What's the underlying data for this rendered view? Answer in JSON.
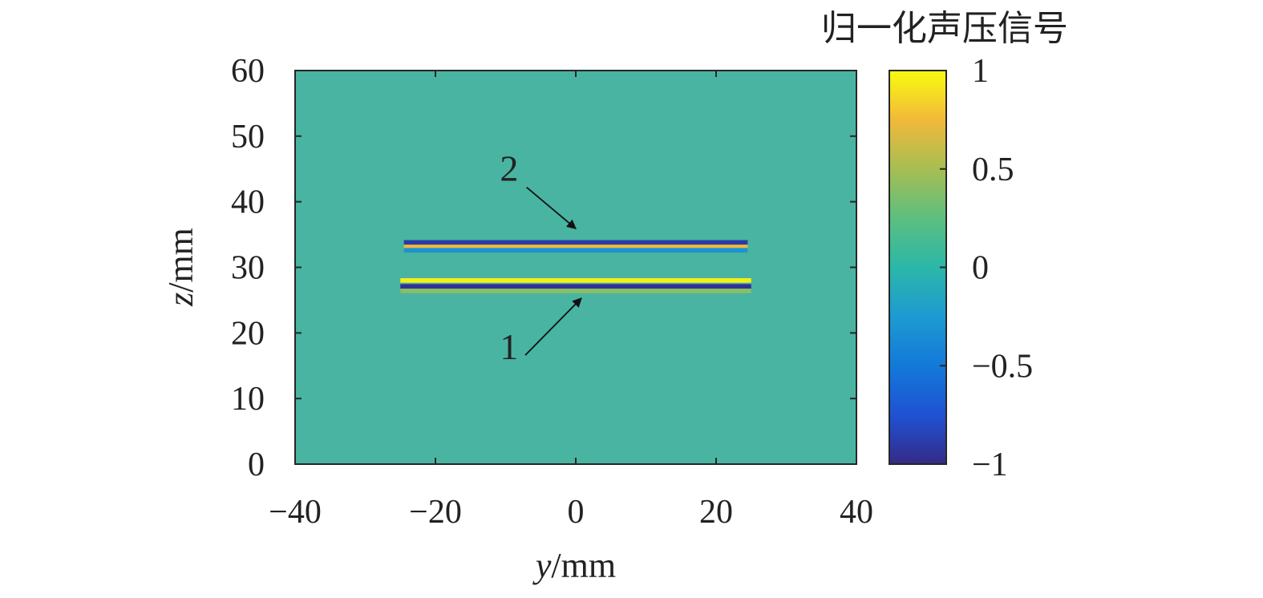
{
  "chart_data": {
    "type": "heatmap",
    "xlabel_var": "y",
    "xlabel_unit": "/mm",
    "ylabel_var": "z",
    "ylabel_unit": "/mm",
    "xlim": [
      -40,
      40
    ],
    "ylim": [
      0,
      60
    ],
    "x_ticks": [
      -40,
      -20,
      0,
      20,
      40
    ],
    "y_ticks": [
      0,
      10,
      20,
      30,
      40,
      50,
      60
    ],
    "x_tick_labels": [
      "−40",
      "−20",
      "0",
      "20",
      "40"
    ],
    "y_tick_labels": [
      "0",
      "10",
      "20",
      "30",
      "40",
      "50",
      "60"
    ],
    "background_value": 0,
    "colorbar": {
      "title": "归一化声压信号",
      "range": [
        -1,
        1
      ],
      "ticks": [
        1,
        0.5,
        0,
        -0.5,
        -1
      ],
      "tick_labels": [
        "1",
        "0.5",
        "0",
        "−0.5",
        "−1"
      ],
      "colormap": "parula"
    },
    "features": [
      {
        "id": "interface-2",
        "annotation": "2",
        "y_range": [
          -24.5,
          24.5
        ],
        "bands": [
          {
            "z": 33.8,
            "value": -0.9
          },
          {
            "z": 33.1,
            "value": 0.75
          },
          {
            "z": 32.6,
            "value": -0.3
          }
        ]
      },
      {
        "id": "interface-1",
        "annotation": "1",
        "y_range": [
          -25,
          25
        ],
        "bands": [
          {
            "z": 28.0,
            "value": 0.95
          },
          {
            "z": 27.1,
            "value": -0.95
          },
          {
            "z": 26.4,
            "value": 0.4
          }
        ]
      }
    ],
    "arrows": [
      {
        "label": "2",
        "label_at": [
          -9.5,
          43.2
        ],
        "from": [
          -7,
          42.2
        ],
        "to": [
          0,
          35.9
        ]
      },
      {
        "label": "1",
        "label_at": [
          -9.5,
          16
        ],
        "from": [
          -7.2,
          16.6
        ],
        "to": [
          0.8,
          25.3
        ]
      }
    ],
    "colors": {
      "background": "#48b4a1",
      "frame": "#262626"
    }
  }
}
